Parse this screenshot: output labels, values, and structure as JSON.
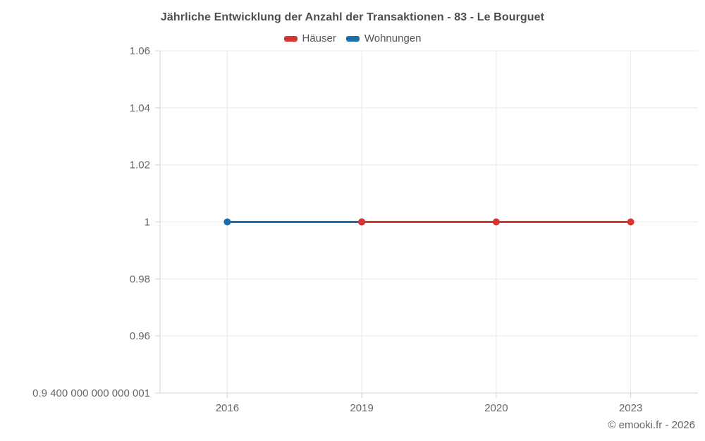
{
  "title": "Jährliche Entwicklung der Anzahl der Transaktionen - 83 - Le Bourguet",
  "footer": "© emooki.fr - 2026",
  "chart_data": {
    "type": "line",
    "title": "Jährliche Entwicklung der Anzahl der Transaktionen - 83 - Le Bourguet",
    "categories": [
      "2016",
      "2019",
      "2020",
      "2023"
    ],
    "series": [
      {
        "name": "Häuser",
        "color": "#d43632",
        "data": [
          null,
          1,
          1,
          1
        ]
      },
      {
        "name": "Wohnungen",
        "color": "#1b6fa9",
        "data": [
          1,
          1,
          null,
          null
        ]
      }
    ],
    "ylim": [
      0.94,
      1.06
    ],
    "yticks": [
      {
        "value": 0.94,
        "label": "0.9 400 000 000 000 001"
      },
      {
        "value": 0.96,
        "label": "0.96"
      },
      {
        "value": 0.98,
        "label": "0.98"
      },
      {
        "value": 1,
        "label": "1"
      },
      {
        "value": 1.02,
        "label": "1.02"
      },
      {
        "value": 1.04,
        "label": "1.04"
      },
      {
        "value": 1.06,
        "label": "1.06"
      }
    ],
    "grid": true,
    "legend_position": "top",
    "draw_order": [
      "Wohnungen",
      "Häuser"
    ]
  },
  "colors": {
    "grid": "#e9e9e9",
    "axis": "#d3d3d3",
    "tick_text": "#666666",
    "title_text": "#4e4e4e",
    "legend_text": "#555555",
    "footer_text": "#666666"
  }
}
